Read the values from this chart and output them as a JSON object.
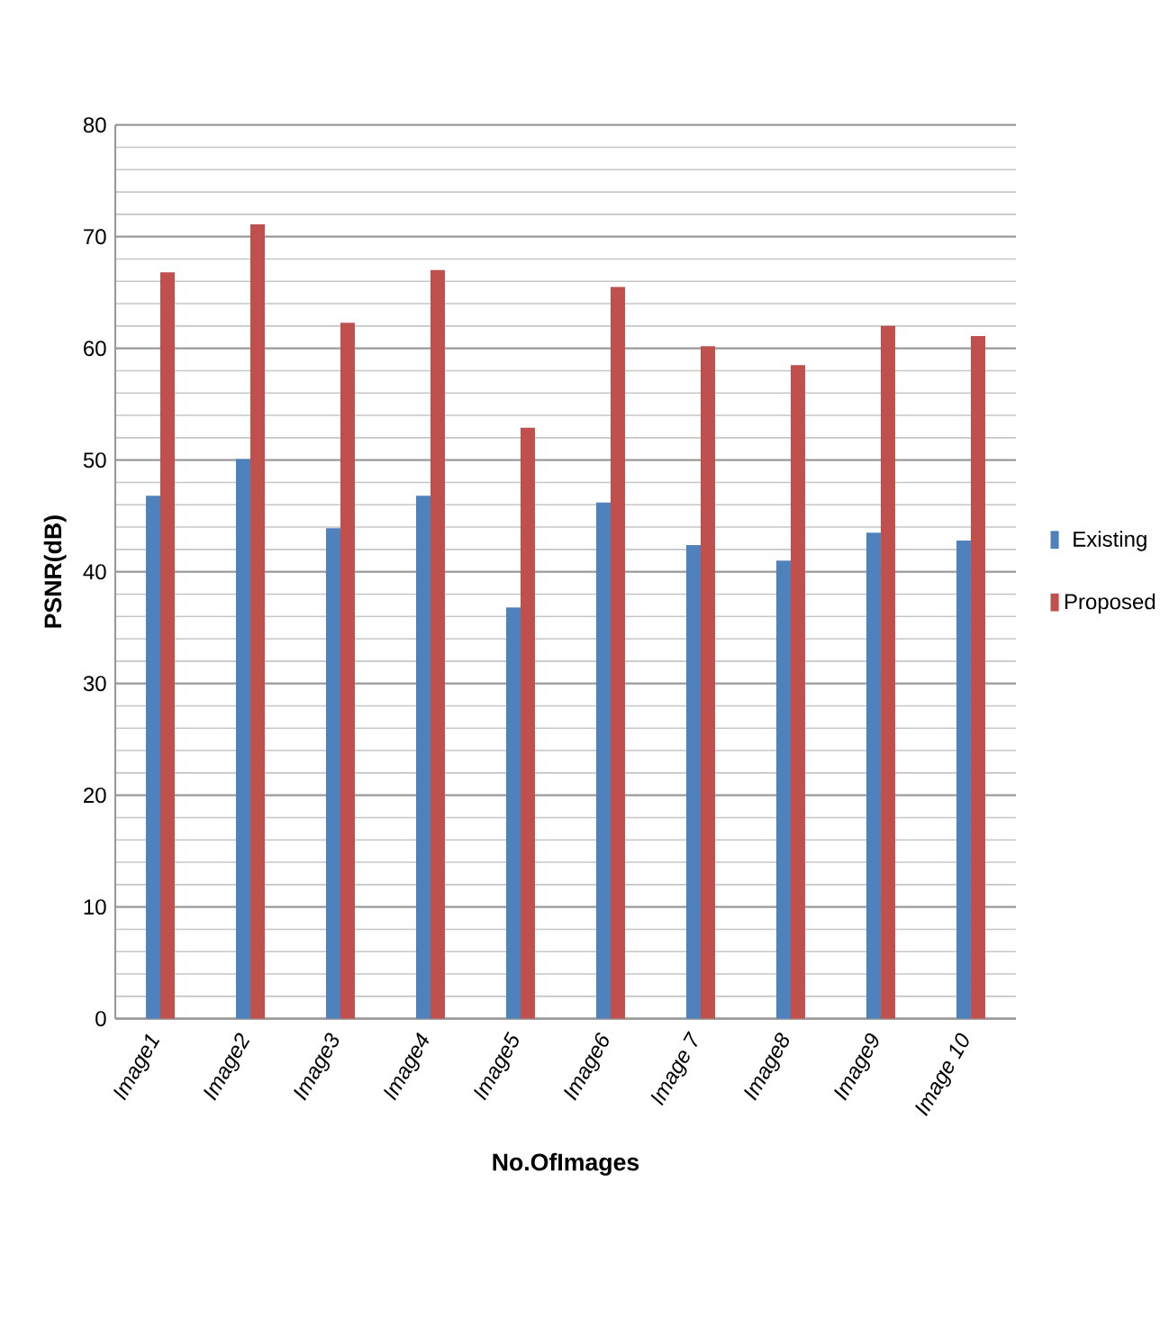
{
  "chart_data": {
    "type": "bar",
    "xlabel": "No.OfImages",
    "ylabel": "PSNR(dB)",
    "categories": [
      "Image1",
      "Image2",
      "Image3",
      "Image4",
      "Image5",
      "Image6",
      "Image 7",
      "Image8",
      "Image9",
      "Image 10"
    ],
    "series": [
      {
        "name": "Existing",
        "color": "#4f81bd",
        "values": [
          46.8,
          50.1,
          43.9,
          46.8,
          36.8,
          46.2,
          42.4,
          41.0,
          43.5,
          42.8
        ]
      },
      {
        "name": "Proposed",
        "color": "#c0504d",
        "values": [
          66.8,
          71.1,
          62.3,
          67.0,
          52.9,
          65.5,
          60.2,
          58.5,
          62.0,
          61.1
        ]
      }
    ],
    "ylim": [
      0,
      80
    ],
    "yticks": [
      0,
      10,
      20,
      30,
      40,
      50,
      60,
      70,
      80
    ],
    "grid": "y",
    "legend": "right"
  }
}
